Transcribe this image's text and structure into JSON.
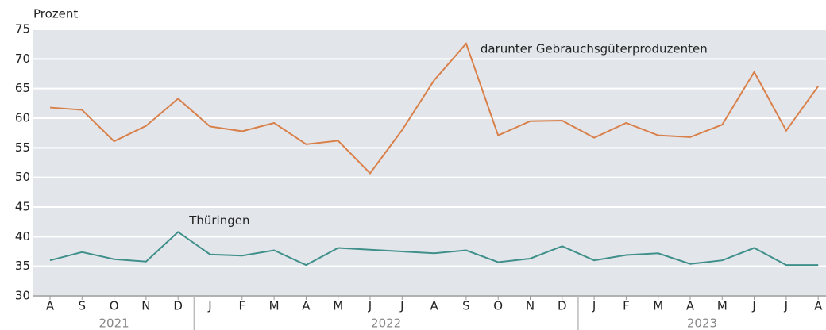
{
  "chart_data": {
    "type": "line",
    "y_label": "Prozent",
    "categories": [
      "A",
      "S",
      "O",
      "N",
      "D",
      "J",
      "F",
      "M",
      "A",
      "M",
      "J",
      "J",
      "A",
      "S",
      "O",
      "N",
      "D",
      "J",
      "F",
      "M",
      "A",
      "M",
      "J",
      "J",
      "A"
    ],
    "groups": [
      {
        "label": "2021",
        "count": 5
      },
      {
        "label": "2022",
        "count": 12
      },
      {
        "label": "2023",
        "count": 8
      }
    ],
    "series": [
      {
        "name": "darunter Gebrauchsgüterproduzenten",
        "color": "#d9804a",
        "values": [
          61.8,
          61.4,
          56.1,
          58.7,
          63.3,
          58.6,
          57.8,
          59.2,
          55.6,
          56.2,
          50.7,
          58.0,
          66.4,
          72.6,
          57.1,
          59.5,
          59.6,
          56.7,
          59.2,
          57.1,
          56.8,
          58.9,
          67.8,
          57.9,
          65.4
        ]
      },
      {
        "name": "Thüringen",
        "color": "#3f8f8a",
        "values": [
          36.0,
          37.4,
          36.2,
          35.8,
          40.8,
          37.0,
          36.8,
          37.7,
          35.2,
          38.1,
          37.8,
          37.5,
          37.2,
          37.7,
          35.7,
          36.3,
          38.4,
          36.0,
          36.9,
          37.2,
          35.4,
          36.0,
          38.1,
          35.2,
          35.2
        ]
      }
    ],
    "ylim": [
      30,
      75
    ],
    "yticks": [
      30,
      35,
      40,
      45,
      50,
      55,
      60,
      65,
      70,
      75
    ],
    "grid": true
  }
}
